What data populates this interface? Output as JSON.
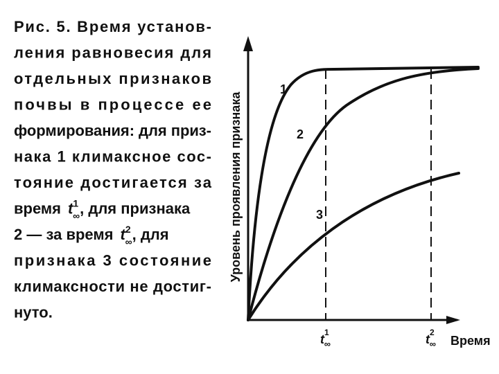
{
  "caption": {
    "lines": [
      "Рис. 5. Время установ-",
      "ления равновесия для",
      "отдельных признаков",
      "почвы в процессе ее",
      "формирования: для приз-",
      "нака 1 климаксное сос-",
      "тояние достигается за"
    ],
    "line8": {
      "before": "время",
      "t": "t",
      "sup": "1",
      "sub": "∞",
      "after": ", для признака"
    },
    "line9": {
      "before": "2 — за время",
      "t": "t",
      "sup": "2",
      "sub": "∞",
      "after": ", для"
    },
    "tail": [
      "признака 3 состояние",
      "климаксности не достиг-",
      "нуто."
    ]
  },
  "diagram": {
    "y_axis_label": "Уровень проявления признака",
    "x_axis_label": "Время",
    "curve_labels": [
      "1",
      "2",
      "3"
    ],
    "x_marks": [
      {
        "t": "t",
        "sup": "1",
        "sub": "∞"
      },
      {
        "t": "t",
        "sup": "2",
        "sub": "∞"
      }
    ]
  }
}
